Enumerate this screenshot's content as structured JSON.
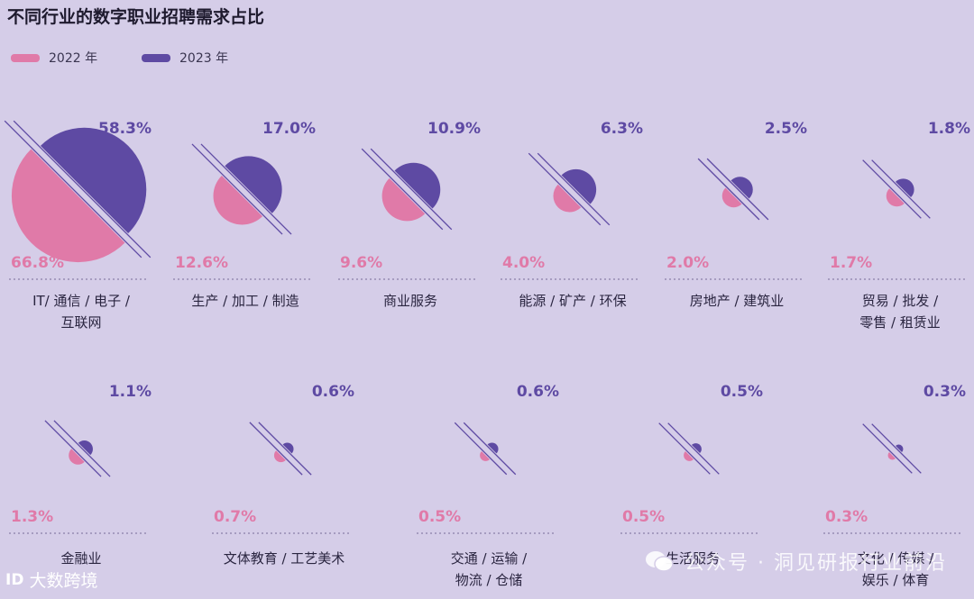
{
  "title": "不同行业的数字职业招聘需求占比",
  "legend": [
    {
      "label": "2022 年",
      "color": "#e07aa8"
    },
    {
      "label": "2023 年",
      "color": "#5e4aa3"
    }
  ],
  "chart_data": {
    "type": "pie",
    "series": [
      {
        "name": "2022 年",
        "color": "#e07aa8"
      },
      {
        "name": "2023 年",
        "color": "#5e4aa3"
      }
    ],
    "categories": [
      {
        "label": "IT/ 通信 / 电子 /\n互联网",
        "v2022": 66.8,
        "v2023": 58.3,
        "t2022": "66.8%",
        "t2023": "58.3%"
      },
      {
        "label": "生产 / 加工 / 制造",
        "v2022": 12.6,
        "v2023": 17.0,
        "t2022": "12.6%",
        "t2023": "17.0%"
      },
      {
        "label": "商业服务",
        "v2022": 9.6,
        "v2023": 10.9,
        "t2022": "9.6%",
        "t2023": "10.9%"
      },
      {
        "label": "能源 / 矿产 / 环保",
        "v2022": 4.0,
        "v2023": 6.3,
        "t2022": "4.0%",
        "t2023": "6.3%"
      },
      {
        "label": "房地产 / 建筑业",
        "v2022": 2.0,
        "v2023": 2.5,
        "t2022": "2.0%",
        "t2023": "2.5%"
      },
      {
        "label": "贸易 / 批发 /\n零售 / 租赁业",
        "v2022": 1.7,
        "v2023": 1.8,
        "t2022": "1.7%",
        "t2023": "1.8%"
      },
      {
        "label": "金融业",
        "v2022": 1.3,
        "v2023": 1.1,
        "t2022": "1.3%",
        "t2023": "1.1%"
      },
      {
        "label": "文体教育 / 工艺美术",
        "v2022": 0.7,
        "v2023": 0.6,
        "t2022": "0.7%",
        "t2023": "0.6%"
      },
      {
        "label": "交通 / 运输 /\n物流 / 仓储",
        "v2022": 0.5,
        "v2023": 0.6,
        "t2022": "0.5%",
        "t2023": "0.6%"
      },
      {
        "label": "生活服务",
        "v2022": 0.5,
        "v2023": 0.5,
        "t2022": "0.5%",
        "t2023": "0.5%"
      },
      {
        "label": "文化 / 传媒 /\n娱乐 / 体育",
        "v2022": 0.3,
        "v2023": 0.3,
        "t2022": "0.3%",
        "t2023": "0.3%"
      }
    ]
  },
  "footer": {
    "logo_mark": "ID",
    "logo_text": "大数跨境"
  },
  "watermark": {
    "text": "公众号 · 洞见研报行业前沿"
  }
}
